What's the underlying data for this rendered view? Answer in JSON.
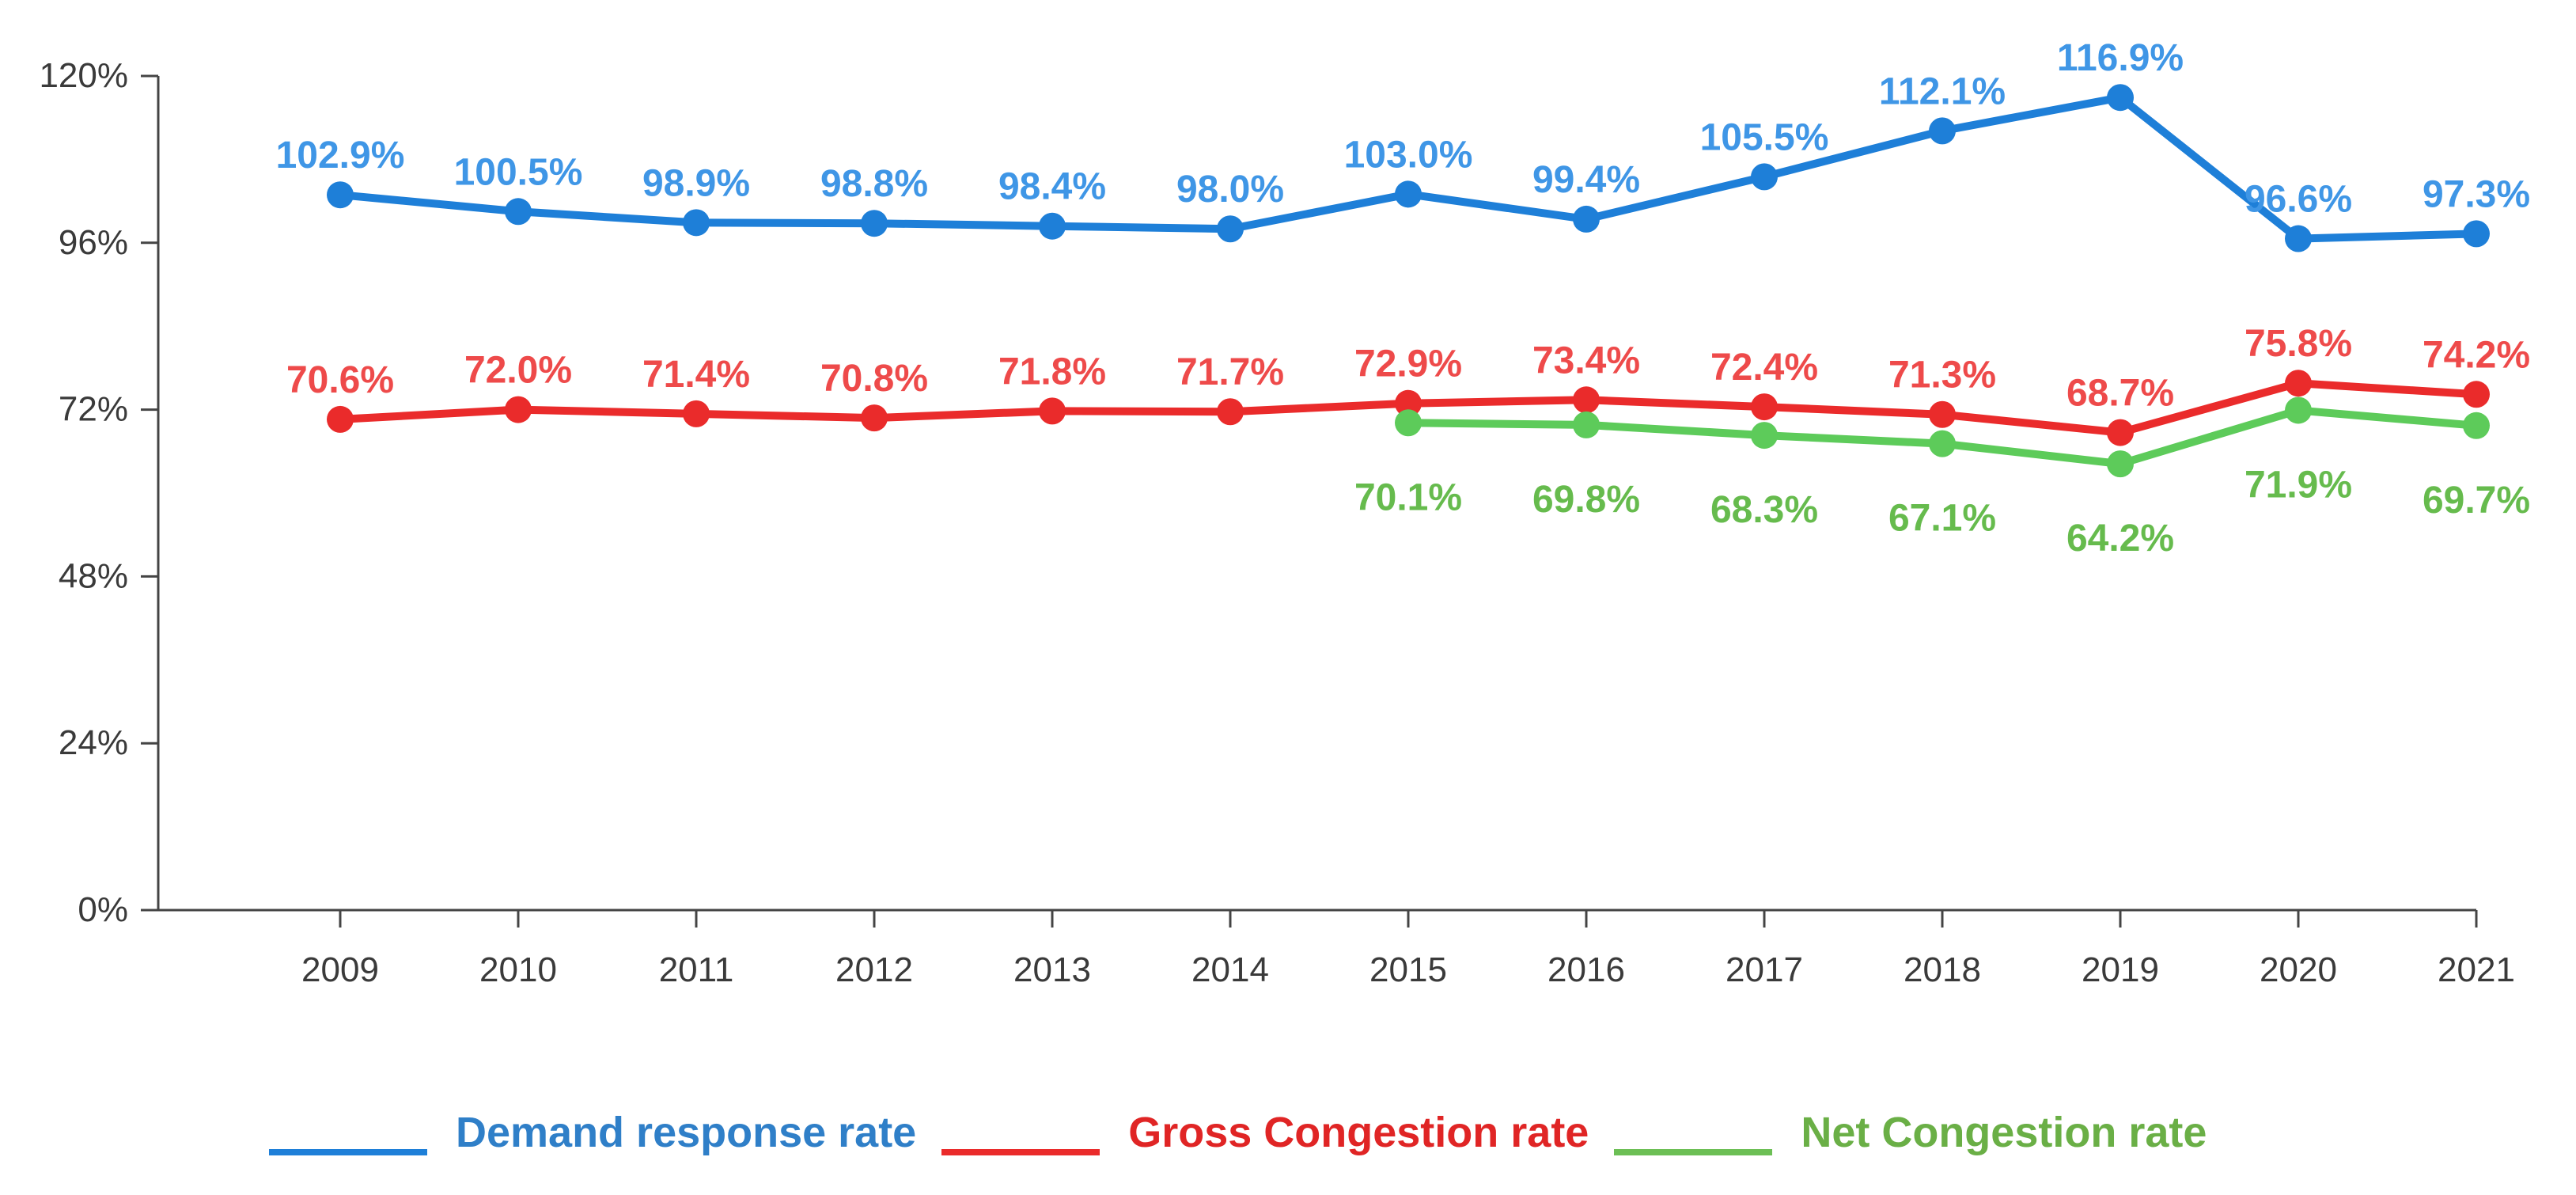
{
  "chart_data": {
    "type": "line",
    "title": "",
    "xlabel": "",
    "ylabel": "",
    "categories": [
      "2009",
      "2010",
      "2011",
      "2012",
      "2013",
      "2014",
      "2015",
      "2016",
      "2017",
      "2018",
      "2019",
      "2020",
      "2021"
    ],
    "ylim": [
      0,
      120
    ],
    "yticks": [
      0,
      24,
      48,
      72,
      96,
      120
    ],
    "ytick_labels": [
      "0%",
      "24%",
      "48%",
      "72%",
      "96%",
      "120%"
    ],
    "grid": false,
    "legend_position": "bottom",
    "series": [
      {
        "name": "Demand response rate",
        "color": "#1e7fd8",
        "label_color": "#3f96e6",
        "label_position": "above",
        "values": [
          102.9,
          100.5,
          98.9,
          98.8,
          98.4,
          98.0,
          103.0,
          99.4,
          105.5,
          112.1,
          116.9,
          96.6,
          97.3
        ],
        "labels": [
          "102.9%",
          "100.5%",
          "98.9%",
          "98.8%",
          "98.4%",
          "98.0%",
          "103.0%",
          "99.4%",
          "105.5%",
          "112.1%",
          "116.9%",
          "96.6%",
          "97.3%"
        ]
      },
      {
        "name": "Gross Congestion rate",
        "color": "#ea2b2b",
        "label_color": "#ee4a4a",
        "label_position": "above",
        "values": [
          70.6,
          72.0,
          71.4,
          70.8,
          71.8,
          71.7,
          72.9,
          73.4,
          72.4,
          71.3,
          68.7,
          75.8,
          74.2
        ],
        "labels": [
          "70.6%",
          "72.0%",
          "71.4%",
          "70.8%",
          "71.8%",
          "71.7%",
          "72.9%",
          "73.4%",
          "72.4%",
          "71.3%",
          "68.7%",
          "75.8%",
          "74.2%"
        ]
      },
      {
        "name": "Net Congestion rate",
        "color": "#5dcb5a",
        "label_color": "#66bb4d",
        "label_position": "below",
        "values": [
          null,
          null,
          null,
          null,
          null,
          null,
          70.1,
          69.8,
          68.3,
          67.1,
          64.2,
          71.9,
          69.7
        ],
        "labels": [
          "",
          "",
          "",
          "",
          "",
          "",
          "70.1%",
          "69.8%",
          "68.3%",
          "67.1%",
          "64.2%",
          "71.9%",
          "69.7%"
        ]
      }
    ]
  },
  "legend": {
    "items": [
      {
        "label": "Demand response rate",
        "color": "#1e7fd8",
        "text_color": "#2f7fc8"
      },
      {
        "label": "Gross Congestion rate",
        "color": "#ea2b2b",
        "text_color": "#e02525"
      },
      {
        "label": "Net Congestion rate",
        "color": "#6cbf55",
        "text_color": "#6aaf46"
      }
    ]
  }
}
